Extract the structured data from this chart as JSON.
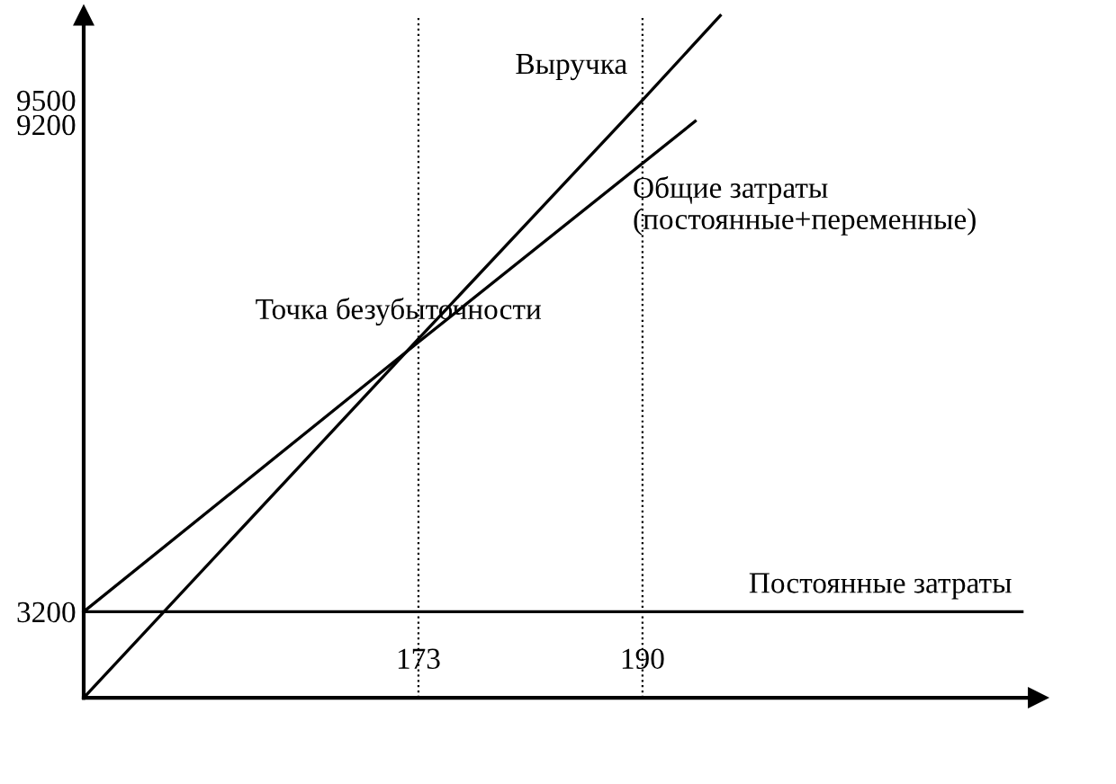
{
  "chart_data": {
    "type": "line",
    "series": [
      {
        "name": "Выручка",
        "color": "#000000",
        "x": [
          147.6,
          173,
          190,
          195.9
        ],
        "values": [
          2140,
          6560,
          9500,
          10540
        ]
      },
      {
        "name": "Общие затраты\n(постоянные+переменные)",
        "color": "#000000",
        "x": [
          147.6,
          173,
          194.0
        ],
        "values": [
          3200,
          6520,
          9240
        ]
      },
      {
        "name": "Постоянные затраты",
        "color": "#000000",
        "x": [
          147.6,
          218.8
        ],
        "values": [
          3200,
          3200
        ]
      }
    ],
    "xlim": [
      147.6,
      220
    ],
    "ylim": [
      2140,
      10540
    ],
    "xticks": [
      173,
      190
    ],
    "yticks": [
      3200,
      9200,
      9500
    ],
    "ref_lines": [
      {
        "axis": "x",
        "value": 173,
        "line_style": "dotted",
        "color": "#000000"
      },
      {
        "axis": "x",
        "value": 190,
        "line_style": "dotted",
        "color": "#000000"
      }
    ],
    "annotations": [
      {
        "text": "Точка безубыточности",
        "x": 173,
        "y": 6540
      }
    ],
    "grid": false,
    "legend": false,
    "marker": "none",
    "line_style": "solid"
  }
}
